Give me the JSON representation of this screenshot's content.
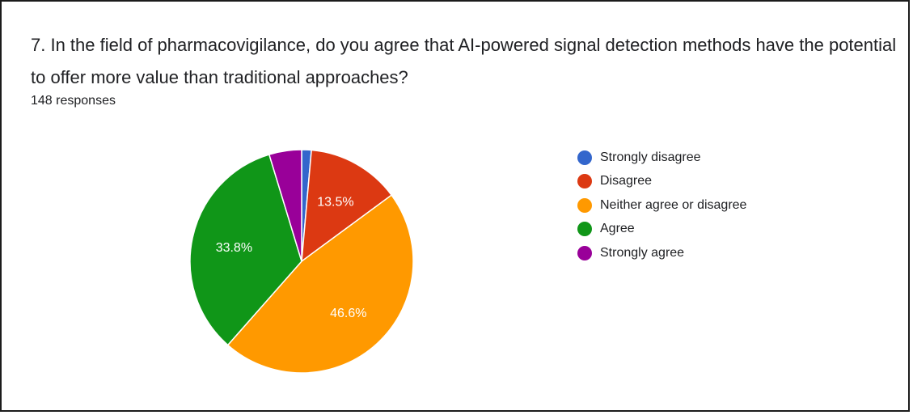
{
  "question": {
    "title": "7. In the field of pharmacovigilance, do you agree that AI-powered signal detection methods have the potential to offer more value than traditional approaches?",
    "responses": "148 responses"
  },
  "chart_data": {
    "type": "pie",
    "title": "7. In the field of pharmacovigilance, do you agree that AI-powered signal detection methods have the potential to offer more value than traditional approaches?",
    "legend_position": "right",
    "start_angle_deg": 90,
    "direction": "clockwise",
    "slices": [
      {
        "label": "Strongly disagree",
        "value": 1.4,
        "display": "",
        "color": "#3366cc"
      },
      {
        "label": "Disagree",
        "value": 13.5,
        "display": "13.5%",
        "color": "#dc3912"
      },
      {
        "label": "Neither agree or disagree",
        "value": 46.6,
        "display": "46.6%",
        "color": "#ff9900"
      },
      {
        "label": "Agree",
        "value": 33.8,
        "display": "33.8%",
        "color": "#109618"
      },
      {
        "label": "Strongly agree",
        "value": 4.7,
        "display": "",
        "color": "#990099"
      }
    ]
  }
}
